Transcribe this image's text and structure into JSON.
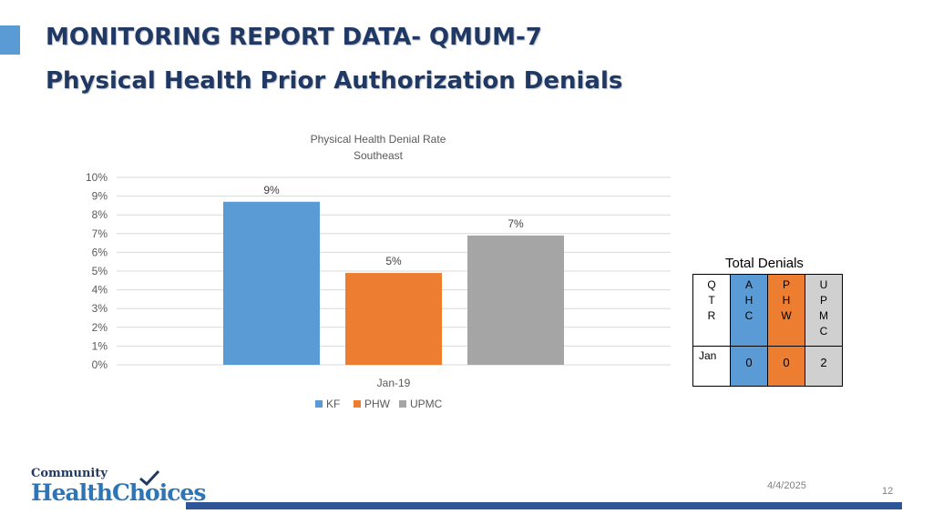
{
  "header": {
    "title_line1": "MONITORING REPORT DATA- QMUM-7",
    "title_line2": "Physical Health Prior Authorization Denials"
  },
  "chart_data": {
    "type": "bar",
    "title": "Physical Health Denial Rate",
    "subtitle": "Southeast",
    "categories": [
      "Jan-19"
    ],
    "series": [
      {
        "name": "KF",
        "values": [
          0.087
        ],
        "label": "9%",
        "color": "#5b9bd5"
      },
      {
        "name": "PHW",
        "values": [
          0.049
        ],
        "label": "5%",
        "color": "#ed7d31"
      },
      {
        "name": "UPMC",
        "values": [
          0.069
        ],
        "label": "7%",
        "color": "#a5a5a5"
      }
    ],
    "ylim": [
      0,
      0.1
    ],
    "yticks": [
      "0%",
      "1%",
      "2%",
      "3%",
      "4%",
      "5%",
      "6%",
      "7%",
      "8%",
      "9%",
      "10%"
    ],
    "grid": true,
    "legend_position": "bottom"
  },
  "totals_table": {
    "title": "Total Denials",
    "header": [
      [
        "Q",
        "T",
        "R"
      ],
      [
        "A",
        "H",
        "C"
      ],
      [
        "P",
        "H",
        "W"
      ],
      [
        "U",
        "P",
        "M",
        "C"
      ]
    ],
    "row_label": "Jan",
    "values": [
      "0",
      "0",
      "2"
    ]
  },
  "footer": {
    "logo_top": "Community",
    "logo_main": "HealthChoices",
    "date": "4/4/2025",
    "page": "12"
  },
  "colors": {
    "title": "#1f3864",
    "accent": "#5b9bd5",
    "footer_bar": "#2f5597"
  }
}
